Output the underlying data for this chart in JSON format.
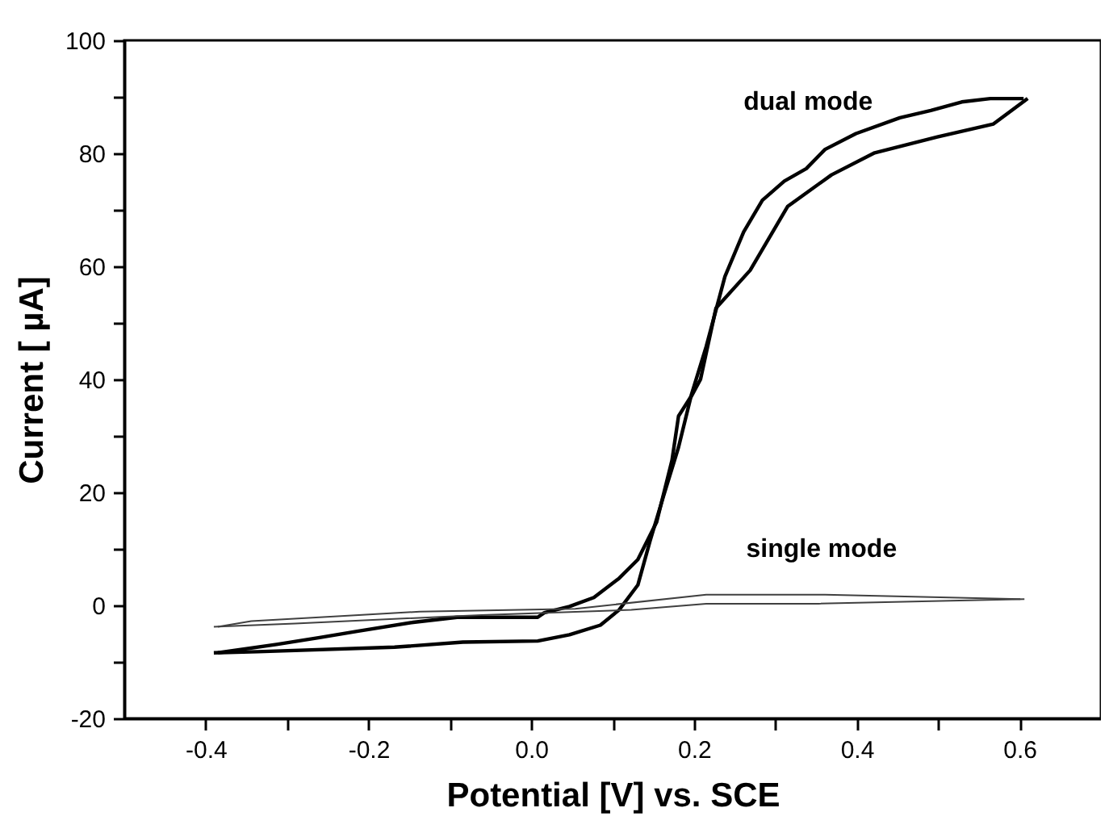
{
  "chart_data": {
    "type": "line",
    "xlabel": "Potential [V] vs. SCE",
    "ylabel": "Current [ µA]",
    "xlim": [
      -0.5,
      0.7
    ],
    "ylim": [
      -20,
      100
    ],
    "xticks": [
      {
        "value": -0.4,
        "label": "-0.4"
      },
      {
        "value": -0.3,
        "label": null
      },
      {
        "value": -0.2,
        "label": "-0.2"
      },
      {
        "value": -0.1,
        "label": null
      },
      {
        "value": 0.0,
        "label": "0.0"
      },
      {
        "value": 0.1,
        "label": null
      },
      {
        "value": 0.2,
        "label": "0.2"
      },
      {
        "value": 0.3,
        "label": null
      },
      {
        "value": 0.4,
        "label": "0.4"
      },
      {
        "value": 0.5,
        "label": null
      },
      {
        "value": 0.6,
        "label": "0.6"
      }
    ],
    "yticks": [
      -20,
      {
        "value": -10,
        "label": null
      },
      0,
      {
        "value": 10,
        "label": null
      },
      20,
      {
        "value": 30,
        "label": null
      },
      40,
      {
        "value": 50,
        "label": null
      },
      60,
      {
        "value": 70,
        "label": null
      },
      80,
      {
        "value": 90,
        "label": null
      },
      100
    ],
    "grid": false,
    "legend": false,
    "marker": "none",
    "line_style": "solid",
    "series": [
      {
        "name": "dual mode",
        "color": "#000000",
        "x": [
          -0.39,
          -0.336,
          -0.168,
          -0.084,
          0.008,
          0.047,
          0.085,
          0.108,
          0.131,
          0.146,
          0.162,
          0.181,
          0.196,
          0.208,
          0.227,
          0.269,
          0.315,
          0.369,
          0.422,
          0.499,
          0.568,
          0.61
        ],
        "values": [
          -8.4,
          -8.2,
          -7.4,
          -6.5,
          -6.3,
          -5.2,
          -3.5,
          -0.8,
          3.6,
          11.4,
          19.1,
          28,
          36.8,
          40,
          52.6,
          59.3,
          70.6,
          76.2,
          80.1,
          82.9,
          85.2,
          89.7
        ]
      },
      {
        "color": "#000000",
        "x": [
          0.605,
          0.564,
          0.529,
          0.491,
          0.453,
          0.399,
          0.361,
          0.338,
          0.311,
          0.284,
          0.261,
          0.238,
          0.215,
          0.196,
          0.181,
          0.173,
          0.154,
          0.131,
          0.108,
          0.077,
          0.047,
          0.016,
          0.008,
          -0.091,
          -0.145,
          -0.214,
          -0.26,
          -0.313,
          -0.385
        ],
        "values": [
          89.7,
          89.7,
          89.1,
          87.6,
          86.3,
          83.5,
          80.7,
          77.3,
          75.1,
          71.7,
          66.1,
          58.2,
          45.8,
          36.9,
          33.5,
          25.7,
          14.7,
          8.1,
          4.8,
          1.4,
          -0.2,
          -1.3,
          -2.1,
          -2.1,
          -3,
          -4.6,
          -5.7,
          -6.9,
          -8.4
        ]
      },
      {
        "name": "single mode",
        "color": "#404040",
        "x": [
          -0.39,
          -0.29,
          -0.061,
          0.123,
          0.215,
          0.353,
          0.606
        ],
        "values": [
          -3.8,
          -3.2,
          -1.7,
          -0.8,
          0.3,
          0.3,
          1.1
        ]
      },
      {
        "color": "#404040",
        "x": [
          0.601,
          0.361,
          0.215,
          0.054,
          -0.137,
          -0.344,
          -0.385
        ],
        "values": [
          1.1,
          1.9,
          1.9,
          -0.6,
          -1.1,
          -2.8,
          -3.8
        ]
      }
    ]
  }
}
